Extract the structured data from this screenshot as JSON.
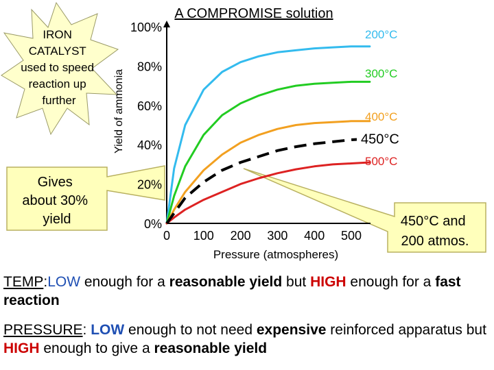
{
  "chart_data": {
    "type": "line",
    "title": "A COMPROMISE solution",
    "xlabel": "Pressure (atmospheres)",
    "ylabel": "Yield of ammonia",
    "xlim": [
      0,
      500
    ],
    "ylim": [
      0,
      100
    ],
    "x_ticks": [
      "0",
      "100",
      "200",
      "300",
      "400",
      "500"
    ],
    "y_ticks": [
      "0%",
      "20%",
      "40%",
      "60%",
      "80%",
      "100%"
    ],
    "grid": false,
    "series": [
      {
        "name": "200°C",
        "color": "#33bbee",
        "x": [
          0,
          20,
          50,
          100,
          150,
          200,
          250,
          300,
          350,
          400,
          450,
          500,
          550
        ],
        "y": [
          0,
          28,
          50,
          68,
          77,
          82,
          85,
          87,
          88,
          89,
          89.5,
          90,
          90
        ]
      },
      {
        "name": "300°C",
        "color": "#22cc22",
        "x": [
          0,
          20,
          50,
          100,
          150,
          200,
          250,
          300,
          350,
          400,
          450,
          500,
          550
        ],
        "y": [
          0,
          14,
          29,
          45,
          55,
          61,
          65,
          68,
          70,
          71,
          71.5,
          72,
          72
        ]
      },
      {
        "name": "400°C",
        "color": "#f2a020",
        "x": [
          0,
          20,
          50,
          100,
          150,
          200,
          250,
          300,
          350,
          400,
          450,
          500,
          550
        ],
        "y": [
          0,
          7,
          16,
          27,
          35,
          41,
          45,
          48,
          50,
          51,
          51.5,
          52,
          52
        ]
      },
      {
        "name": "500°C",
        "color": "#dd2222",
        "x": [
          0,
          20,
          50,
          100,
          150,
          200,
          250,
          300,
          350,
          400,
          450,
          500,
          550
        ],
        "y": [
          0,
          3,
          7,
          12,
          16,
          20,
          23,
          25.5,
          27.5,
          29,
          30,
          30.5,
          31
        ]
      },
      {
        "name": "450°C",
        "color": "#000000",
        "dashed": true,
        "x": [
          0,
          50,
          100,
          150,
          200,
          250,
          300,
          350,
          400,
          450,
          500,
          550
        ],
        "y": [
          0,
          13,
          21,
          27,
          31,
          34,
          37,
          39,
          40.5,
          41.5,
          42.5,
          43
        ]
      }
    ],
    "callouts": {
      "catalyst": "IRON CATALYST used to speed reaction up further",
      "yield": "Gives about 30% yield",
      "point": "450°C and 200 atmos."
    },
    "colors": {
      "burst": "#ffffcc",
      "callout_box": "#ffffbb",
      "callout_border": "#b8b060"
    }
  },
  "temp": {
    "label": "TEMP",
    "p1": ":",
    "low": "LOW",
    "p2": " enough for a ",
    "reasonable_yield": "reasonable yield",
    "p3": " but ",
    "high": "HIGH",
    "p4": " enough for a ",
    "fast_reaction": "fast reaction"
  },
  "pressure": {
    "label": "PRESSURE",
    "p1": ": ",
    "low": "LOW",
    "p2": " enough to not need ",
    "expensive": "expensive",
    "p3": " reinforced apparatus but ",
    "high": "HIGH",
    "p4": " enough to give a ",
    "reasonable_yield": "reasonable yield"
  }
}
